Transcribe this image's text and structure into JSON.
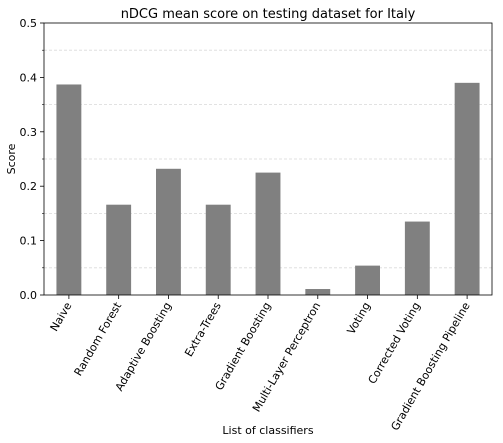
{
  "chart_data": {
    "type": "bar",
    "title": "nDCG mean score on testing dataset for Italy",
    "xlabel": "List of classifiers",
    "ylabel": "Score",
    "ylim": [
      0,
      0.5
    ],
    "yticks": [
      "0.0",
      "0.1",
      "0.2",
      "0.3",
      "0.4",
      "0.5"
    ],
    "grid": "horizontal dashed at minor ticks",
    "categories": [
      "Naive",
      "Random Forest",
      "Adaptive Boosting",
      "Extra-Trees",
      "Gradient Boosting",
      "Multi-Layer Perceptron",
      "Voting",
      "Corrected Voting",
      "Gradient Boosting Pipeline"
    ],
    "values": [
      0.387,
      0.166,
      0.232,
      0.166,
      0.225,
      0.011,
      0.054,
      0.135,
      0.39
    ],
    "bar_color": "#808080"
  }
}
